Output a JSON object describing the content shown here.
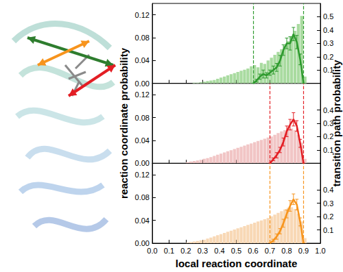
{
  "chart_data": {
    "type": "histogram",
    "xlabel": "local reaction coordinate",
    "ylabel": "reaction coordinate probability",
    "y2label": "transition path probability",
    "grid": false,
    "xlim": [
      0,
      1
    ],
    "xticks": [
      {
        "value": 0,
        "label": "0.0"
      },
      0.1,
      0.2,
      0.3,
      0.4,
      0.5,
      0.6,
      0.7,
      0.8,
      0.9,
      {
        "value": 1,
        "label": "1.0"
      }
    ],
    "ylim": [
      0,
      0.14
    ],
    "yticks": [
      {
        "value": 0,
        "label": "0.00"
      },
      0.04,
      0.08,
      0.12
    ],
    "y2lim": [
      0,
      0.6
    ],
    "bins": [
      0.2,
      0.22,
      0.24,
      0.26,
      0.28,
      0.3,
      0.32,
      0.34,
      0.36,
      0.38,
      0.4,
      0.42,
      0.44,
      0.46,
      0.48,
      0.5,
      0.52,
      0.54,
      0.56,
      0.58,
      0.6,
      0.62,
      0.64,
      0.66,
      0.68,
      0.7,
      0.72,
      0.74,
      0.76,
      0.78,
      0.8,
      0.82,
      0.84,
      0.86,
      0.88,
      0.9,
      0.92
    ],
    "panels": [
      {
        "y2ticks": [
          0.1,
          0.2,
          0.3,
          0.4,
          0.5
        ],
        "bounds": [
          0.6,
          0.9
        ],
        "histogram": {
          "type": "bar",
          "color": "#a9dba0",
          "values": [
            0,
            0,
            0.001,
            0.001,
            0.002,
            0.003,
            0.004,
            0.005,
            0.006,
            0.008,
            0.01,
            0.012,
            0.014,
            0.016,
            0.018,
            0.02,
            0.022,
            0.024,
            0.026,
            0.03,
            0.032,
            0.028,
            0.036,
            0.034,
            0.04,
            0.045,
            0.05,
            0.055,
            0.06,
            0.066,
            0.074,
            0.082,
            0.092,
            0.104,
            0.118,
            0.012
          ]
        },
        "transition_path": {
          "type": "line",
          "axis": "y2",
          "color": "#2e9a2e",
          "x": [
            0.6,
            0.62,
            0.64,
            0.66,
            0.68,
            0.7,
            0.72,
            0.74,
            0.76,
            0.78,
            0.8,
            0.82,
            0.84,
            0.86,
            0.88,
            0.9
          ],
          "values": [
            0,
            0.02,
            0.05,
            0.07,
            0.06,
            0.08,
            0.1,
            0.12,
            0.17,
            0.25,
            0.3,
            0.3,
            0.37,
            0.31,
            0.18,
            0
          ],
          "errors": [
            0,
            0.01,
            0.02,
            0.03,
            0.02,
            0.02,
            0.03,
            0.03,
            0.04,
            0.04,
            0.04,
            0.05,
            0.05,
            0.05,
            0.04,
            0
          ]
        }
      },
      {
        "y2ticks": [
          0.1,
          0.2,
          0.3,
          0.4
        ],
        "bounds": [
          0.7,
          0.9
        ],
        "histogram": {
          "type": "bar",
          "color": "#f1c5c5",
          "values": [
            0.002,
            0.003,
            0.004,
            0.005,
            0.006,
            0.008,
            0.009,
            0.011,
            0.013,
            0.015,
            0.017,
            0.019,
            0.021,
            0.023,
            0.025,
            0.027,
            0.029,
            0.031,
            0.033,
            0.035,
            0.037,
            0.039,
            0.041,
            0.043,
            0.045,
            0.047,
            0.05,
            0.053,
            0.056,
            0.058,
            0.06,
            0.061,
            0.058,
            0.05,
            0.036,
            0.008
          ]
        },
        "transition_path": {
          "type": "line",
          "axis": "y2",
          "color": "#e31e24",
          "x": [
            0.7,
            0.72,
            0.74,
            0.76,
            0.78,
            0.8,
            0.82,
            0.84,
            0.86,
            0.88,
            0.9
          ],
          "values": [
            0,
            0.03,
            0.06,
            0.1,
            0.16,
            0.24,
            0.29,
            0.33,
            0.28,
            0.15,
            0
          ],
          "errors": [
            0,
            0.01,
            0.02,
            0.02,
            0.03,
            0.04,
            0.04,
            0.05,
            0.04,
            0.03,
            0
          ]
        }
      },
      {
        "y2ticks": [
          0.1,
          0.2,
          0.3,
          0.4
        ],
        "bounds": [
          0.7,
          0.9
        ],
        "histogram": {
          "type": "bar",
          "color": "#f8d8b5",
          "values": [
            0.001,
            0.002,
            0.003,
            0.004,
            0.005,
            0.006,
            0.008,
            0.01,
            0.012,
            0.014,
            0.016,
            0.018,
            0.02,
            0.022,
            0.024,
            0.026,
            0.028,
            0.03,
            0.032,
            0.034,
            0.036,
            0.038,
            0.04,
            0.042,
            0.044,
            0.047,
            0.05,
            0.053,
            0.056,
            0.059,
            0.062,
            0.063,
            0.06,
            0.052,
            0.038,
            0.009
          ]
        },
        "transition_path": {
          "type": "line",
          "axis": "y2",
          "color": "#f7941d",
          "x": [
            0.7,
            0.72,
            0.74,
            0.76,
            0.78,
            0.8,
            0.82,
            0.84,
            0.86,
            0.88,
            0.9
          ],
          "values": [
            0,
            0.02,
            0.05,
            0.09,
            0.15,
            0.22,
            0.28,
            0.33,
            0.29,
            0.16,
            0
          ],
          "errors": [
            0,
            0.01,
            0.02,
            0.02,
            0.03,
            0.03,
            0.04,
            0.04,
            0.04,
            0.03,
            0
          ]
        }
      }
    ]
  }
}
